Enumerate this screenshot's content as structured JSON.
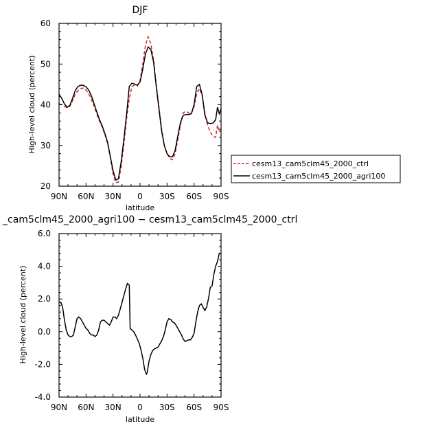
{
  "chart_data": [
    {
      "type": "line",
      "title": "DJF",
      "xlabel": "latitude",
      "ylabel": "High-level cloud (percent)",
      "xlim": [
        -90,
        90
      ],
      "ylim": [
        20,
        60
      ],
      "x_ticks": [
        -90,
        -60,
        -30,
        0,
        30,
        60,
        90
      ],
      "x_tick_labels": [
        "90N",
        "60N",
        "30N",
        "0",
        "30S",
        "60S",
        "90S"
      ],
      "y_ticks": [
        20,
        30,
        40,
        50,
        60
      ],
      "y_tick_labels": [
        "20",
        "30",
        "40",
        "50",
        "60"
      ],
      "legend": "right",
      "series": [
        {
          "name": "cesm13_cam5clm45_2000_ctrl",
          "color": "#d62728",
          "dash": "dashed",
          "points": [
            [
              -90,
              40.3
            ],
            [
              -87,
              40
            ],
            [
              -84,
              39.6
            ],
            [
              -81,
              39.3
            ],
            [
              -78,
              39.6
            ],
            [
              -75,
              41
            ],
            [
              -72,
              42.6
            ],
            [
              -69,
              43.5
            ],
            [
              -66,
              44
            ],
            [
              -63,
              44.1
            ],
            [
              -60,
              43.6
            ],
            [
              -57,
              42.7
            ],
            [
              -54,
              41.3
            ],
            [
              -51,
              39.7
            ],
            [
              -48,
              37.7
            ],
            [
              -45,
              35.9
            ],
            [
              -42,
              34.5
            ],
            [
              -39,
              32.6
            ],
            [
              -36,
              30.5
            ],
            [
              -33,
              27
            ],
            [
              -30,
              23
            ],
            [
              -27,
              20.9
            ],
            [
              -24,
              21
            ],
            [
              -21,
              24.8
            ],
            [
              -18,
              30.2
            ],
            [
              -15,
              36.5
            ],
            [
              -12,
              41.5
            ],
            [
              -9,
              44.5
            ],
            [
              -6,
              44.8
            ],
            [
              -3,
              44.6
            ],
            [
              0,
              46
            ],
            [
              3,
              50
            ],
            [
              6,
              54.7
            ],
            [
              9,
              56.7
            ],
            [
              12,
              55
            ],
            [
              15,
              51
            ],
            [
              18,
              45
            ],
            [
              21,
              39.5
            ],
            [
              24,
              34
            ],
            [
              27,
              30
            ],
            [
              30,
              28
            ],
            [
              33,
              26.8
            ],
            [
              36,
              26.5
            ],
            [
              39,
              28
            ],
            [
              42,
              31.5
            ],
            [
              45,
              35.2
            ],
            [
              48,
              38
            ],
            [
              51,
              38.4
            ],
            [
              54,
              38
            ],
            [
              57,
              37.8
            ],
            [
              60,
              39.5
            ],
            [
              63,
              42.8
            ],
            [
              66,
              44
            ],
            [
              69,
              42.2
            ],
            [
              72,
              38
            ],
            [
              75,
              35
            ],
            [
              78,
              33.3
            ],
            [
              81,
              32.2
            ],
            [
              84,
              32
            ],
            [
              86,
              35
            ],
            [
              88,
              33.3
            ],
            [
              90,
              33.8
            ]
          ]
        },
        {
          "name": "cesm13_cam5clm45_2000_agri100",
          "color": "#000000",
          "dash": "solid",
          "points": [
            [
              -90,
              42.6
            ],
            [
              -87,
              41.6
            ],
            [
              -84,
              40.2
            ],
            [
              -81,
              39.4
            ],
            [
              -78,
              39.8
            ],
            [
              -75,
              41.6
            ],
            [
              -72,
              43.5
            ],
            [
              -69,
              44.5
            ],
            [
              -66,
              44.8
            ],
            [
              -63,
              44.8
            ],
            [
              -60,
              44.4
            ],
            [
              -57,
              43.6
            ],
            [
              -54,
              42.2
            ],
            [
              -51,
              40.2
            ],
            [
              -48,
              38.2
            ],
            [
              -45,
              36.3
            ],
            [
              -42,
              34.8
            ],
            [
              -39,
              32.9
            ],
            [
              -36,
              30.7
            ],
            [
              -33,
              27.3
            ],
            [
              -30,
              23.8
            ],
            [
              -27,
              21.5
            ],
            [
              -24,
              21.8
            ],
            [
              -21,
              26
            ],
            [
              -18,
              31.5
            ],
            [
              -15,
              37.5
            ],
            [
              -12,
              44.5
            ],
            [
              -9,
              45.3
            ],
            [
              -6,
              45.1
            ],
            [
              -3,
              44.8
            ],
            [
              0,
              45.6
            ],
            [
              3,
              48.7
            ],
            [
              6,
              52.5
            ],
            [
              9,
              54.2
            ],
            [
              12,
              53.6
            ],
            [
              15,
              50.5
            ],
            [
              18,
              44.5
            ],
            [
              21,
              39
            ],
            [
              24,
              33.5
            ],
            [
              27,
              30
            ],
            [
              30,
              28
            ],
            [
              33,
              27.2
            ],
            [
              36,
              27.2
            ],
            [
              39,
              28.8
            ],
            [
              42,
              32.4
            ],
            [
              45,
              35.7
            ],
            [
              48,
              37.4
            ],
            [
              51,
              37.6
            ],
            [
              54,
              37.6
            ],
            [
              57,
              37.8
            ],
            [
              60,
              40
            ],
            [
              63,
              44.5
            ],
            [
              66,
              45
            ],
            [
              69,
              42.5
            ],
            [
              72,
              37.5
            ],
            [
              75,
              35.6
            ],
            [
              78,
              35.4
            ],
            [
              81,
              35.5
            ],
            [
              84,
              36.3
            ],
            [
              86,
              39.4
            ],
            [
              88,
              37.8
            ],
            [
              90,
              39
            ]
          ]
        }
      ]
    },
    {
      "type": "line",
      "title": "_cam5clm45_2000_agri100 − cesm13_cam5clm45_2000_ctrl",
      "xlabel": "latitude",
      "ylabel": "High-level cloud (percent)",
      "xlim": [
        -90,
        90
      ],
      "ylim": [
        -4,
        6
      ],
      "x_ticks": [
        -90,
        -60,
        -30,
        0,
        30,
        60,
        90
      ],
      "x_tick_labels": [
        "90N",
        "60N",
        "30N",
        "0",
        "30S",
        "60S",
        "90S"
      ],
      "y_ticks": [
        -4,
        -2,
        0,
        2,
        4,
        6
      ],
      "y_tick_labels": [
        "-4.0",
        "-2.0",
        "0.0",
        "2.0",
        "4.0",
        "6.0"
      ],
      "series": [
        {
          "color": "#000000",
          "dash": "solid",
          "points": [
            [
              -90,
              1.8
            ],
            [
              -88,
              1.8
            ],
            [
              -86,
              1.5
            ],
            [
              -84,
              0.7
            ],
            [
              -82,
              0.1
            ],
            [
              -80,
              -0.2
            ],
            [
              -78,
              -0.3
            ],
            [
              -76,
              -0.3
            ],
            [
              -74,
              -0.2
            ],
            [
              -72,
              0.3
            ],
            [
              -70,
              0.8
            ],
            [
              -68,
              0.9
            ],
            [
              -66,
              0.8
            ],
            [
              -64,
              0.6
            ],
            [
              -62,
              0.4
            ],
            [
              -60,
              0.2
            ],
            [
              -58,
              0.1
            ],
            [
              -56,
              -0.1
            ],
            [
              -54,
              -0.2
            ],
            [
              -52,
              -0.2
            ],
            [
              -50,
              -0.3
            ],
            [
              -48,
              -0.2
            ],
            [
              -46,
              0.1
            ],
            [
              -44,
              0.6
            ],
            [
              -42,
              0.7
            ],
            [
              -40,
              0.7
            ],
            [
              -38,
              0.6
            ],
            [
              -36,
              0.5
            ],
            [
              -34,
              0.4
            ],
            [
              -32,
              0.6
            ],
            [
              -30,
              0.9
            ],
            [
              -28,
              0.9
            ],
            [
              -26,
              0.8
            ],
            [
              -24,
              1
            ],
            [
              -22,
              1.4
            ],
            [
              -20,
              1.8
            ],
            [
              -18,
              2.2
            ],
            [
              -16,
              2.6
            ],
            [
              -14,
              2.95
            ],
            [
              -12,
              2.85
            ],
            [
              -11,
              0.2
            ],
            [
              -9,
              0.1
            ],
            [
              -7,
              0
            ],
            [
              -5,
              -0.2
            ],
            [
              -3,
              -0.45
            ],
            [
              -1,
              -0.7
            ],
            [
              1,
              -1.1
            ],
            [
              3,
              -1.6
            ],
            [
              5,
              -2.3
            ],
            [
              7,
              -2.6
            ],
            [
              8,
              -2.5
            ],
            [
              10,
              -1.8
            ],
            [
              12,
              -1.4
            ],
            [
              14,
              -1.15
            ],
            [
              16,
              -1.05
            ],
            [
              18,
              -1
            ],
            [
              20,
              -0.95
            ],
            [
              22,
              -0.75
            ],
            [
              24,
              -0.55
            ],
            [
              26,
              -0.3
            ],
            [
              28,
              0.1
            ],
            [
              30,
              0.6
            ],
            [
              32,
              0.8
            ],
            [
              34,
              0.75
            ],
            [
              36,
              0.6
            ],
            [
              38,
              0.55
            ],
            [
              40,
              0.4
            ],
            [
              42,
              0.2
            ],
            [
              44,
              0
            ],
            [
              46,
              -0.2
            ],
            [
              48,
              -0.45
            ],
            [
              50,
              -0.6
            ],
            [
              52,
              -0.55
            ],
            [
              54,
              -0.5
            ],
            [
              56,
              -0.5
            ],
            [
              58,
              -0.35
            ],
            [
              60,
              -0.1
            ],
            [
              62,
              0.6
            ],
            [
              64,
              1.2
            ],
            [
              66,
              1.6
            ],
            [
              68,
              1.7
            ],
            [
              70,
              1.5
            ],
            [
              72,
              1.3
            ],
            [
              74,
              1.5
            ],
            [
              76,
              2
            ],
            [
              78,
              2.7
            ],
            [
              80,
              2.8
            ],
            [
              82,
              3.5
            ],
            [
              84,
              4
            ],
            [
              86,
              4.3
            ],
            [
              88,
              4.8
            ],
            [
              90,
              4.8
            ]
          ]
        }
      ]
    }
  ]
}
